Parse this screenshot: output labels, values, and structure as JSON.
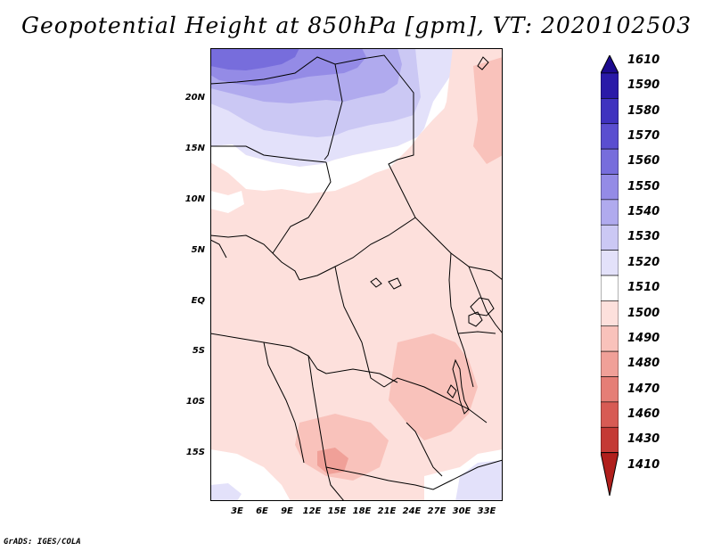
{
  "title": "Geopotential Height at 850hPa [gpm], VT: 2020102503",
  "footer": "GrADS: IGES/COLA",
  "map": {
    "y_axis_labels": [
      "20N",
      "15N",
      "10N",
      "5N",
      "EQ",
      "5S",
      "10S",
      "15S"
    ],
    "x_axis_labels": [
      "3E",
      "6E",
      "9E",
      "12E",
      "15E",
      "18E",
      "21E",
      "24E",
      "27E",
      "30E",
      "33E"
    ]
  },
  "legend": {
    "labels": [
      "1610",
      "1590",
      "1580",
      "1570",
      "1560",
      "1550",
      "1540",
      "1530",
      "1520",
      "1510",
      "1500",
      "1490",
      "1480",
      "1470",
      "1460",
      "1430",
      "1410"
    ],
    "colors": [
      "#1c0a8e",
      "#2a1aa8",
      "#3f32bf",
      "#5a4ed0",
      "#776ddc",
      "#948be6",
      "#b0aaee",
      "#cbc8f4",
      "#e3e1fa",
      "#ffffff",
      "#fde0dc",
      "#f9c2bb",
      "#f0a098",
      "#e57e76",
      "#d75b54",
      "#c43a35",
      "#b01f1c"
    ]
  }
}
